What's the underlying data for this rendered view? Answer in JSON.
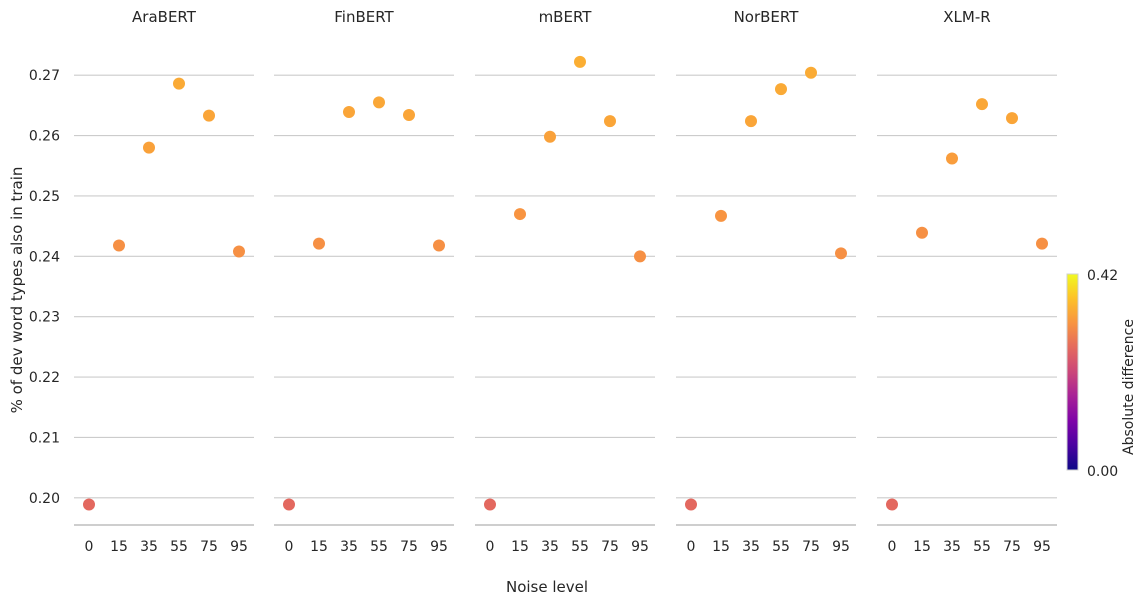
{
  "chart_data": {
    "type": "scatter",
    "ylabel": "% of dev word types also in train",
    "xlabel": "Noise level",
    "categories": [
      "0",
      "15",
      "35",
      "55",
      "75",
      "95"
    ],
    "ylim": [
      0.1955,
      0.2755
    ],
    "yticks": [
      "0.20",
      "0.21",
      "0.22",
      "0.23",
      "0.24",
      "0.25",
      "0.26",
      "0.27"
    ],
    "grid": true,
    "colorbar": {
      "label": "Absolute  difference",
      "min_label": "0.00",
      "max_label": "0.42",
      "min": 0.0,
      "max": 0.42,
      "colormap": "plasma"
    },
    "panels": [
      {
        "title": "AraBERT",
        "values": [
          0.1989,
          0.2418,
          0.258,
          0.2686,
          0.2633,
          0.2408
        ],
        "color_values": [
          0.26,
          0.31,
          0.33,
          0.34,
          0.335,
          0.31
        ]
      },
      {
        "title": "FinBERT",
        "values": [
          0.1989,
          0.2421,
          0.2639,
          0.2655,
          0.2634,
          0.2418
        ],
        "color_values": [
          0.26,
          0.31,
          0.335,
          0.337,
          0.335,
          0.31
        ]
      },
      {
        "title": "mBERT",
        "values": [
          0.1989,
          0.247,
          0.2598,
          0.2722,
          0.2624,
          0.24
        ],
        "color_values": [
          0.26,
          0.315,
          0.33,
          0.345,
          0.335,
          0.31
        ]
      },
      {
        "title": "NorBERT",
        "values": [
          0.1989,
          0.2467,
          0.2624,
          0.2677,
          0.2704,
          0.2405
        ],
        "color_values": [
          0.26,
          0.315,
          0.335,
          0.34,
          0.342,
          0.31
        ]
      },
      {
        "title": "XLM-R",
        "values": [
          0.1989,
          0.2439,
          0.2562,
          0.2652,
          0.2629,
          0.2421
        ],
        "color_values": [
          0.26,
          0.31,
          0.325,
          0.337,
          0.335,
          0.31
        ]
      }
    ]
  }
}
